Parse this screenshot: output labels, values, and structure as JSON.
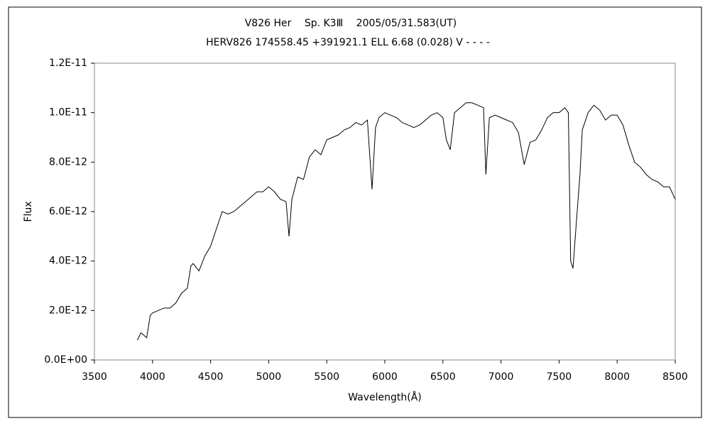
{
  "chart_data": {
    "type": "line",
    "title": "V826 Her　 Sp. K3Ⅲ　 2005/05/31.583(UT)",
    "subtitle": "HERV826 174558.45 +391921.1 ELL 6.68 (0.028) V - - - -",
    "x_label": "Wavelength(Å)",
    "y_label": "Flux",
    "color": "#000000",
    "grid": false,
    "x": [
      3870,
      3900,
      3950,
      3980,
      4000,
      4050,
      4100,
      4150,
      4200,
      4250,
      4300,
      4330,
      4350,
      4400,
      4450,
      4500,
      4550,
      4600,
      4650,
      4700,
      4750,
      4800,
      4850,
      4900,
      4950,
      5000,
      5050,
      5100,
      5150,
      5175,
      5200,
      5250,
      5300,
      5350,
      5400,
      5450,
      5500,
      5550,
      5600,
      5650,
      5700,
      5750,
      5800,
      5850,
      5890,
      5920,
      5950,
      6000,
      6050,
      6100,
      6150,
      6200,
      6250,
      6300,
      6350,
      6400,
      6450,
      6500,
      6530,
      6563,
      6600,
      6650,
      6700,
      6750,
      6800,
      6850,
      6870,
      6900,
      6950,
      7000,
      7050,
      7100,
      7150,
      7200,
      7250,
      7300,
      7350,
      7400,
      7450,
      7500,
      7550,
      7580,
      7600,
      7620,
      7640,
      7680,
      7700,
      7750,
      7800,
      7850,
      7900,
      7950,
      8000,
      8050,
      8100,
      8150,
      8200,
      8250,
      8300,
      8350,
      8400,
      8450,
      8500
    ],
    "values": [
      8e-13,
      1.1e-12,
      9e-13,
      1.8e-12,
      1.9e-12,
      2e-12,
      2.1e-12,
      2.1e-12,
      2.3e-12,
      2.7e-12,
      2.9e-12,
      3.8e-12,
      3.9e-12,
      3.6e-12,
      4.2e-12,
      4.6e-12,
      5.3e-12,
      6e-12,
      5.9e-12,
      6e-12,
      6.2e-12,
      6.4e-12,
      6.6e-12,
      6.8e-12,
      6.8e-12,
      7e-12,
      6.8e-12,
      6.5e-12,
      6.4e-12,
      5e-12,
      6.5e-12,
      7.4e-12,
      7.3e-12,
      8.2e-12,
      8.5e-12,
      8.3e-12,
      8.9e-12,
      9e-12,
      9.1e-12,
      9.3e-12,
      9.4e-12,
      9.6e-12,
      9.5e-12,
      9.7e-12,
      6.9e-12,
      9.4e-12,
      9.8e-12,
      1e-11,
      9.9e-12,
      9.8e-12,
      9.6e-12,
      9.5e-12,
      9.4e-12,
      9.5e-12,
      9.7e-12,
      9.9e-12,
      1e-11,
      9.8e-12,
      8.9e-12,
      8.5e-12,
      1e-11,
      1.02e-11,
      1.04e-11,
      1.04e-11,
      1.03e-11,
      1.02e-11,
      7.5e-12,
      9.8e-12,
      9.9e-12,
      9.8e-12,
      9.7e-12,
      9.6e-12,
      9.2e-12,
      7.9e-12,
      8.8e-12,
      8.9e-12,
      9.3e-12,
      9.8e-12,
      1e-11,
      1e-11,
      1.02e-11,
      1e-11,
      4e-12,
      3.7e-12,
      5e-12,
      7.5e-12,
      9.3e-12,
      1e-11,
      1.03e-11,
      1.01e-11,
      9.7e-12,
      9.9e-12,
      9.9e-12,
      9.5e-12,
      8.7e-12,
      8e-12,
      7.8e-12,
      7.5e-12,
      7.3e-12,
      7.2e-12,
      7e-12,
      7e-12,
      6.5e-12
    ],
    "xlim": [
      3500,
      8500
    ],
    "xticks": [
      3500,
      4000,
      4500,
      5000,
      5500,
      6000,
      6500,
      7000,
      7500,
      8000,
      8500
    ],
    "ylim": [
      0,
      1.2e-11
    ],
    "yticks": [
      {
        "value": 0,
        "label": "0.0E+00"
      },
      {
        "value": 2e-12,
        "label": "2.0E-12"
      },
      {
        "value": 4e-12,
        "label": "4.0E-12"
      },
      {
        "value": 6e-12,
        "label": "6.0E-12"
      },
      {
        "value": 8e-12,
        "label": "8.0E-12"
      },
      {
        "value": 1e-11,
        "label": "1.0E-11"
      },
      {
        "value": 1.2e-11,
        "label": "1.2E-11"
      }
    ]
  }
}
